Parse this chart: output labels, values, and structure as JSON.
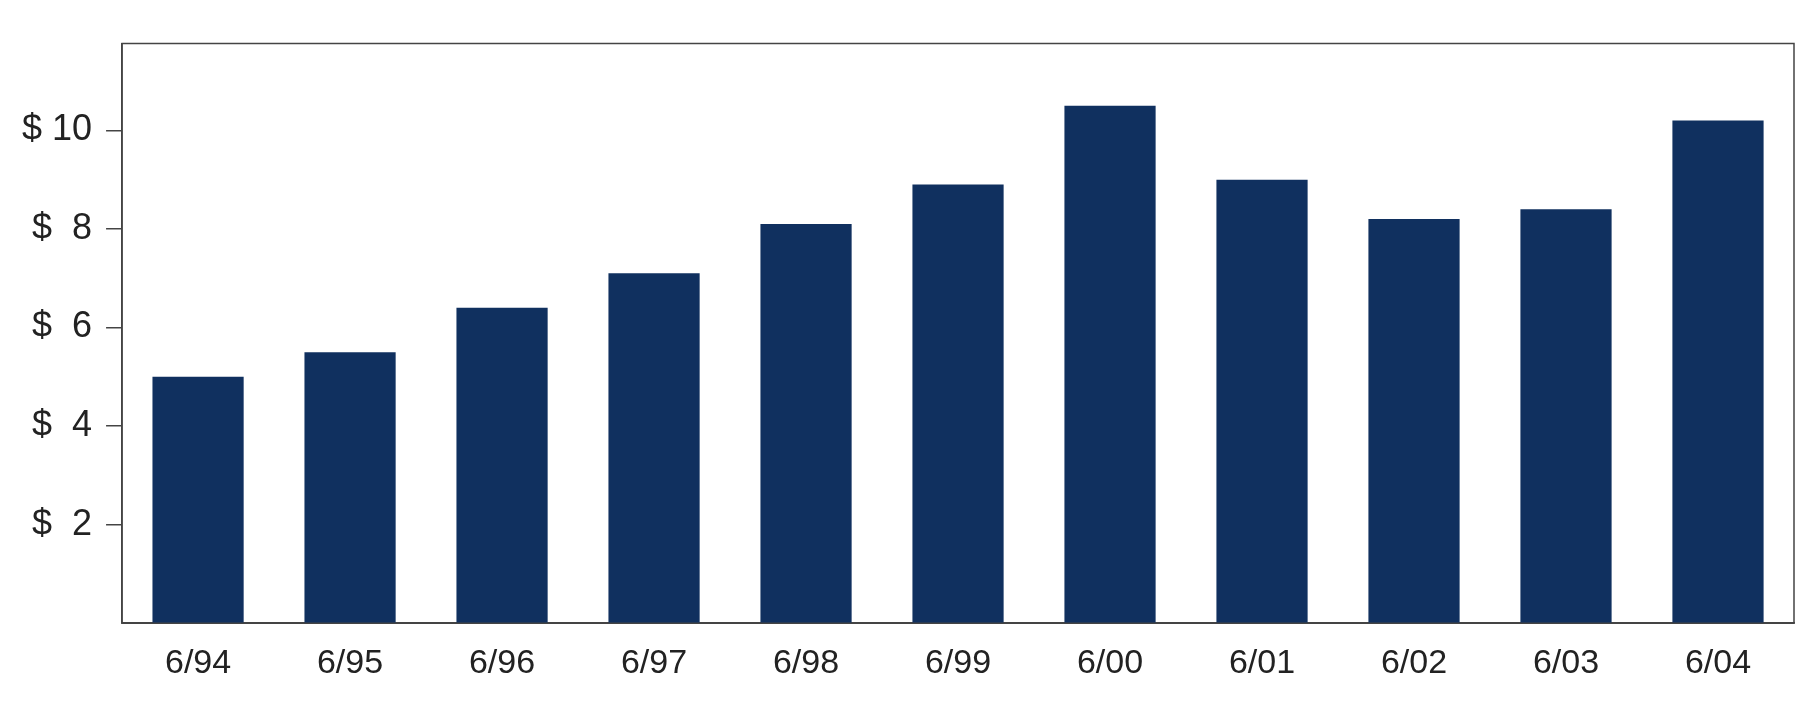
{
  "chart_data": {
    "type": "bar",
    "categories": [
      "6/94",
      "6/95",
      "6/96",
      "6/97",
      "6/98",
      "6/99",
      "6/00",
      "6/01",
      "6/02",
      "6/03",
      "6/04"
    ],
    "values": [
      5.0,
      5.5,
      6.4,
      7.1,
      8.1,
      8.9,
      10.5,
      9.0,
      8.2,
      8.4,
      10.2
    ],
    "color": "#10305f",
    "ylim": [
      0,
      11.76
    ],
    "yticks": [
      {
        "value": 2,
        "label": "$  2"
      },
      {
        "value": 4,
        "label": "$  4"
      },
      {
        "value": 6,
        "label": "$  6"
      },
      {
        "value": 8,
        "label": "$  8"
      },
      {
        "value": 10,
        "label": "$ 10"
      }
    ],
    "grid": false
  }
}
